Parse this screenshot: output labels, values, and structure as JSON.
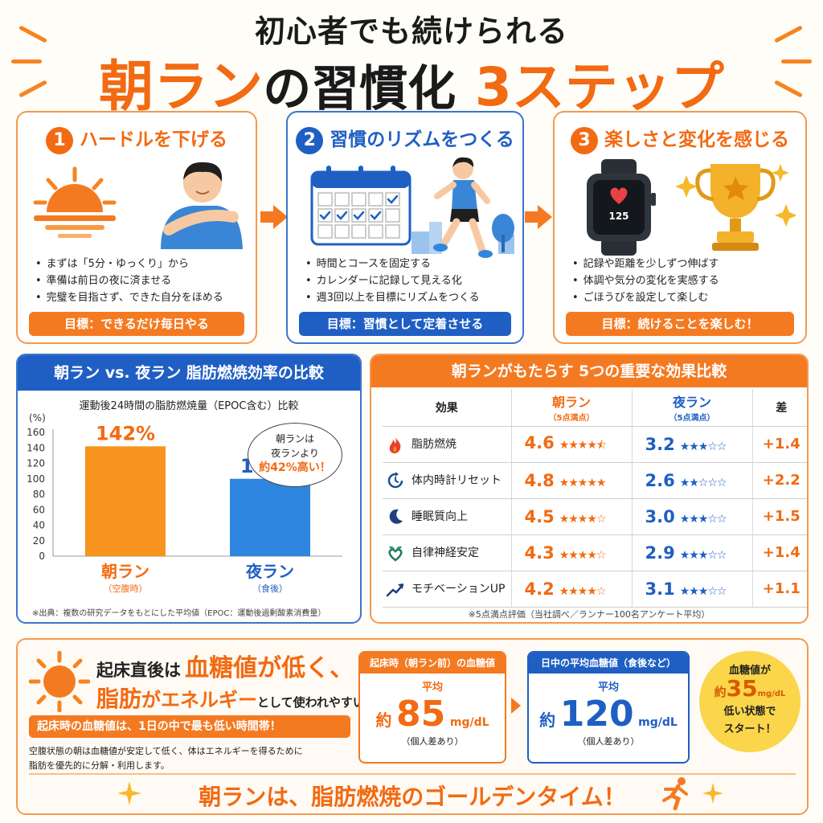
{
  "title": {
    "top": "初心者でも続けられる",
    "main_1": "朝ラン",
    "main_2": "の習慣化",
    "main_3": "3ステップ"
  },
  "steps": [
    {
      "number": "1",
      "heading": "ハードルを下げる",
      "bullets": [
        "まずは「5分・ゆっくり」から",
        "準備は前日の夜に済ませる",
        "完璧を目指さず、できた自分をほめる"
      ],
      "goal": "目標：できるだけ毎日やる"
    },
    {
      "number": "2",
      "heading": "習慣のリズムをつくる",
      "bullets": [
        "時間とコースを固定する",
        "カレンダーに記録して見える化",
        "週3回以上を目標にリズムをつくる"
      ],
      "goal": "目標：習慣として定着させる"
    },
    {
      "number": "3",
      "heading": "楽しさと変化を感じる",
      "bullets": [
        "記録や距離を少しずつ伸ばす",
        "体調や気分の変化を実感する",
        "ごほうびを設定して楽しむ"
      ],
      "goal": "目標：続けることを楽しむ！",
      "watch_value": "125"
    }
  ],
  "chart_panel": {
    "heading": "朝ラン vs. 夜ラン 脂肪燃焼効率の比較",
    "subtitle": "運動後24時間の脂肪燃焼量（EPOC含む）比較",
    "callout_1": "朝ランは",
    "callout_2": "夜ランより",
    "callout_3": "約42%高い！",
    "source": "※出典：複数の研究データをもとにした平均値（EPOC：運動後過剰酸素消費量）"
  },
  "chart_data": {
    "type": "bar",
    "ylabel": "(%)",
    "ylim": [
      0,
      160
    ],
    "yticks": [
      "160",
      "140",
      "120",
      "100",
      "80",
      "60",
      "40",
      "20",
      "0"
    ],
    "categories": [
      "朝ラン",
      "夜ラン"
    ],
    "category_notes": [
      "（空腹時）",
      "（食後）"
    ],
    "values": [
      142,
      100
    ],
    "value_labels": [
      "142%",
      "100%"
    ],
    "colors": [
      "#f7941d",
      "#2f86e0"
    ]
  },
  "effects_panel": {
    "heading": "朝ランがもたらす 5つの重要な効果比較",
    "col_effect": "効果",
    "col_morning": "朝ラン",
    "col_morning_note": "（5点満点）",
    "col_night": "夜ラン",
    "col_night_note": "（5点満点）",
    "col_diff": "差",
    "rows": [
      {
        "icon": "flame-icon",
        "label": "脂肪燃焼",
        "morning": "4.6",
        "morning_stars": "★★★★⯪",
        "night": "3.2",
        "night_stars": "★★★☆☆",
        "diff": "+1.4"
      },
      {
        "icon": "clock-reset-icon",
        "label": "体内時計リセット",
        "morning": "4.8",
        "morning_stars": "★★★★★",
        "night": "2.6",
        "night_stars": "★★☆☆☆",
        "diff": "+2.2"
      },
      {
        "icon": "moon-icon",
        "label": "睡眠質向上",
        "morning": "4.5",
        "morning_stars": "★★★★☆",
        "night": "3.0",
        "night_stars": "★★★☆☆",
        "diff": "+1.5"
      },
      {
        "icon": "heart-leaf-icon",
        "label": "自律神経安定",
        "morning": "4.3",
        "morning_stars": "★★★★☆",
        "night": "2.9",
        "night_stars": "★★★☆☆",
        "diff": "+1.4"
      },
      {
        "icon": "trend-up-icon",
        "label": "モチベーションUP",
        "morning": "4.2",
        "morning_stars": "★★★★☆",
        "night": "3.1",
        "night_stars": "★★★☆☆",
        "diff": "+1.1"
      }
    ],
    "footnote": "※5点満点評価（当社調べ／ランナー100名アンケート平均）"
  },
  "bottom": {
    "line1_a": "起床直後は",
    "line1_b": "血糖値が低く、",
    "line2_a": "脂肪",
    "line2_b": "がエネルギー",
    "line2_c": "として使われやすい！",
    "banner": "起床時の血糖値は、1日の中で最も低い時間帯！",
    "desc_1": "空腹状態の朝は血糖値が安定して低く、体はエネルギーを得るために",
    "desc_2": "脂肪を優先的に分解・利用します。",
    "box1": {
      "head": "起床時（朝ラン前）の血糖値",
      "avg": "平均",
      "prefix": "約",
      "value": "85",
      "unit": "mg/dL",
      "note": "（個人差あり）"
    },
    "box2": {
      "head": "日中の平均血糖値（食後など）",
      "avg": "平均",
      "prefix": "約",
      "value": "120",
      "unit": "mg/dL",
      "note": "（個人差あり）"
    },
    "bubble": {
      "l1": "血糖値が",
      "l2_prefix": "約",
      "l2_value": "35",
      "l2_unit": "mg/dL",
      "l3": "低い状態で",
      "l4": "スタート！"
    },
    "slogan": "朝ランは、脂肪燃焼のゴールデンタイム！"
  },
  "colors": {
    "orange": "#f26a12",
    "blue": "#1f5fc4",
    "yellow": "#fbd54a"
  }
}
